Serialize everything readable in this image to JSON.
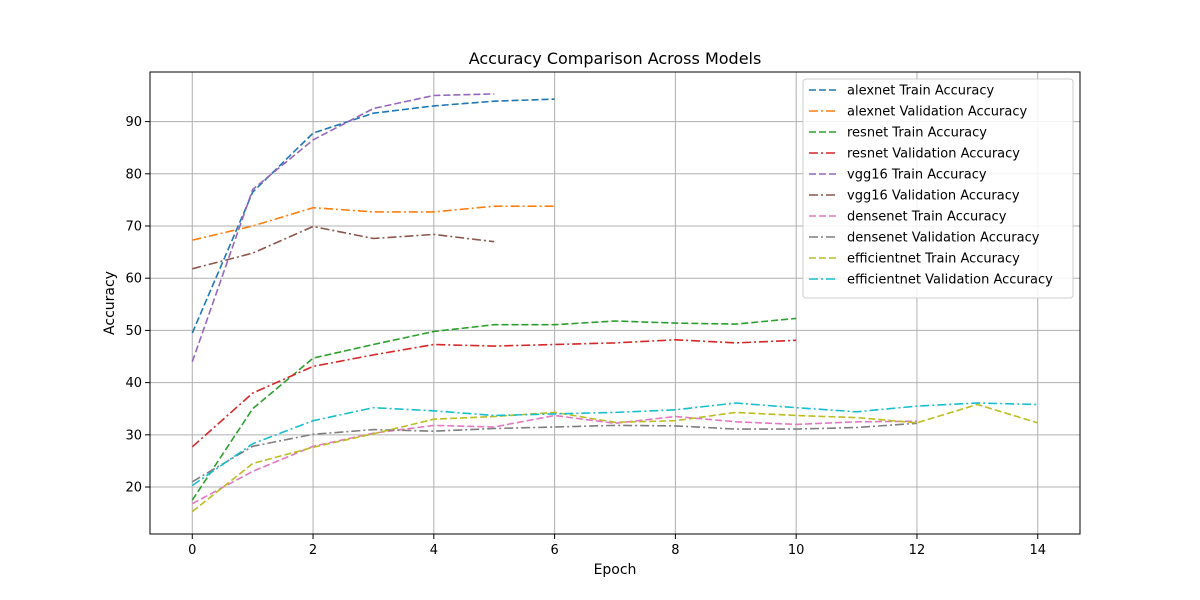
{
  "chart_data": {
    "type": "line",
    "title": "Accuracy Comparison Across Models",
    "xlabel": "Epoch",
    "ylabel": "Accuracy",
    "xlim": [
      -0.7,
      14.7
    ],
    "ylim": [
      11,
      99.5
    ],
    "xticks": [
      0,
      2,
      4,
      6,
      8,
      10,
      12,
      14
    ],
    "yticks": [
      20,
      30,
      40,
      50,
      60,
      70,
      80,
      90
    ],
    "grid": true,
    "legend_position": "top-right",
    "series": [
      {
        "name": "alexnet Train Accuracy",
        "color": "#1f77b4",
        "style": "dashed",
        "x": [
          0,
          1,
          2,
          3,
          4,
          5,
          6
        ],
        "y": [
          49.5,
          76.5,
          87.8,
          91.6,
          93.0,
          93.9,
          94.3
        ]
      },
      {
        "name": "alexnet Validation Accuracy",
        "color": "#ff7f0e",
        "style": "dashdot",
        "x": [
          0,
          1,
          2,
          3,
          4,
          5,
          6
        ],
        "y": [
          67.3,
          70.0,
          73.5,
          72.7,
          72.7,
          73.8,
          73.8
        ]
      },
      {
        "name": "resnet Train Accuracy",
        "color": "#2ca02c",
        "style": "dashed",
        "x": [
          0,
          1,
          2,
          3,
          4,
          5,
          6,
          7,
          8,
          9,
          10
        ],
        "y": [
          17.5,
          35.0,
          44.7,
          47.3,
          49.8,
          51.1,
          51.1,
          51.8,
          51.4,
          51.2,
          52.3
        ]
      },
      {
        "name": "resnet Validation Accuracy",
        "color": "#d62728",
        "style": "dashdot",
        "x": [
          0,
          1,
          2,
          3,
          4,
          5,
          6,
          7,
          8,
          9,
          10
        ],
        "y": [
          27.7,
          38.0,
          43.1,
          45.3,
          47.3,
          47.0,
          47.3,
          47.6,
          48.2,
          47.6,
          48.1
        ]
      },
      {
        "name": "vgg16 Train Accuracy",
        "color": "#9467bd",
        "style": "dashed",
        "x": [
          0,
          1,
          2,
          3,
          4,
          5
        ],
        "y": [
          44.0,
          77.0,
          86.5,
          92.5,
          95.0,
          95.3
        ]
      },
      {
        "name": "vgg16 Validation Accuracy",
        "color": "#8c564b",
        "style": "dashdot",
        "x": [
          0,
          1,
          2,
          3,
          4,
          5
        ],
        "y": [
          61.8,
          64.8,
          69.9,
          67.6,
          68.4,
          67.0
        ]
      },
      {
        "name": "densenet Train Accuracy",
        "color": "#e377c2",
        "style": "dashed",
        "x": [
          0,
          1,
          2,
          3,
          4,
          5,
          6,
          7,
          8,
          9,
          10,
          11,
          12
        ],
        "y": [
          16.8,
          23.0,
          27.8,
          30.3,
          31.8,
          31.5,
          33.7,
          32.2,
          33.5,
          32.5,
          32.0,
          32.5,
          32.6
        ]
      },
      {
        "name": "densenet Validation Accuracy",
        "color": "#7f7f7f",
        "style": "dashdot",
        "x": [
          0,
          1,
          2,
          3,
          4,
          5,
          6,
          7,
          8,
          9,
          10,
          11,
          12
        ],
        "y": [
          21.0,
          27.8,
          30.1,
          31.0,
          30.7,
          31.2,
          31.5,
          31.8,
          31.7,
          31.1,
          31.1,
          31.4,
          32.2
        ]
      },
      {
        "name": "efficientnet Train Accuracy",
        "color": "#bcbd22",
        "style": "dashed",
        "x": [
          0,
          1,
          2,
          3,
          4,
          5,
          6,
          7,
          8,
          9,
          10,
          11,
          12,
          13,
          14
        ],
        "y": [
          15.3,
          24.5,
          27.6,
          30.2,
          33.0,
          33.5,
          34.3,
          32.4,
          32.7,
          34.3,
          33.7,
          33.3,
          32.3,
          35.8,
          32.3
        ]
      },
      {
        "name": "efficientnet Validation Accuracy",
        "color": "#17becf",
        "style": "dashdot",
        "x": [
          0,
          1,
          2,
          3,
          4,
          5,
          6,
          7,
          8,
          9,
          10,
          11,
          12,
          13,
          14
        ],
        "y": [
          20.3,
          28.3,
          32.7,
          35.2,
          34.6,
          33.7,
          34.0,
          34.3,
          34.8,
          36.1,
          35.2,
          34.4,
          35.5,
          36.1,
          35.8
        ]
      }
    ]
  }
}
